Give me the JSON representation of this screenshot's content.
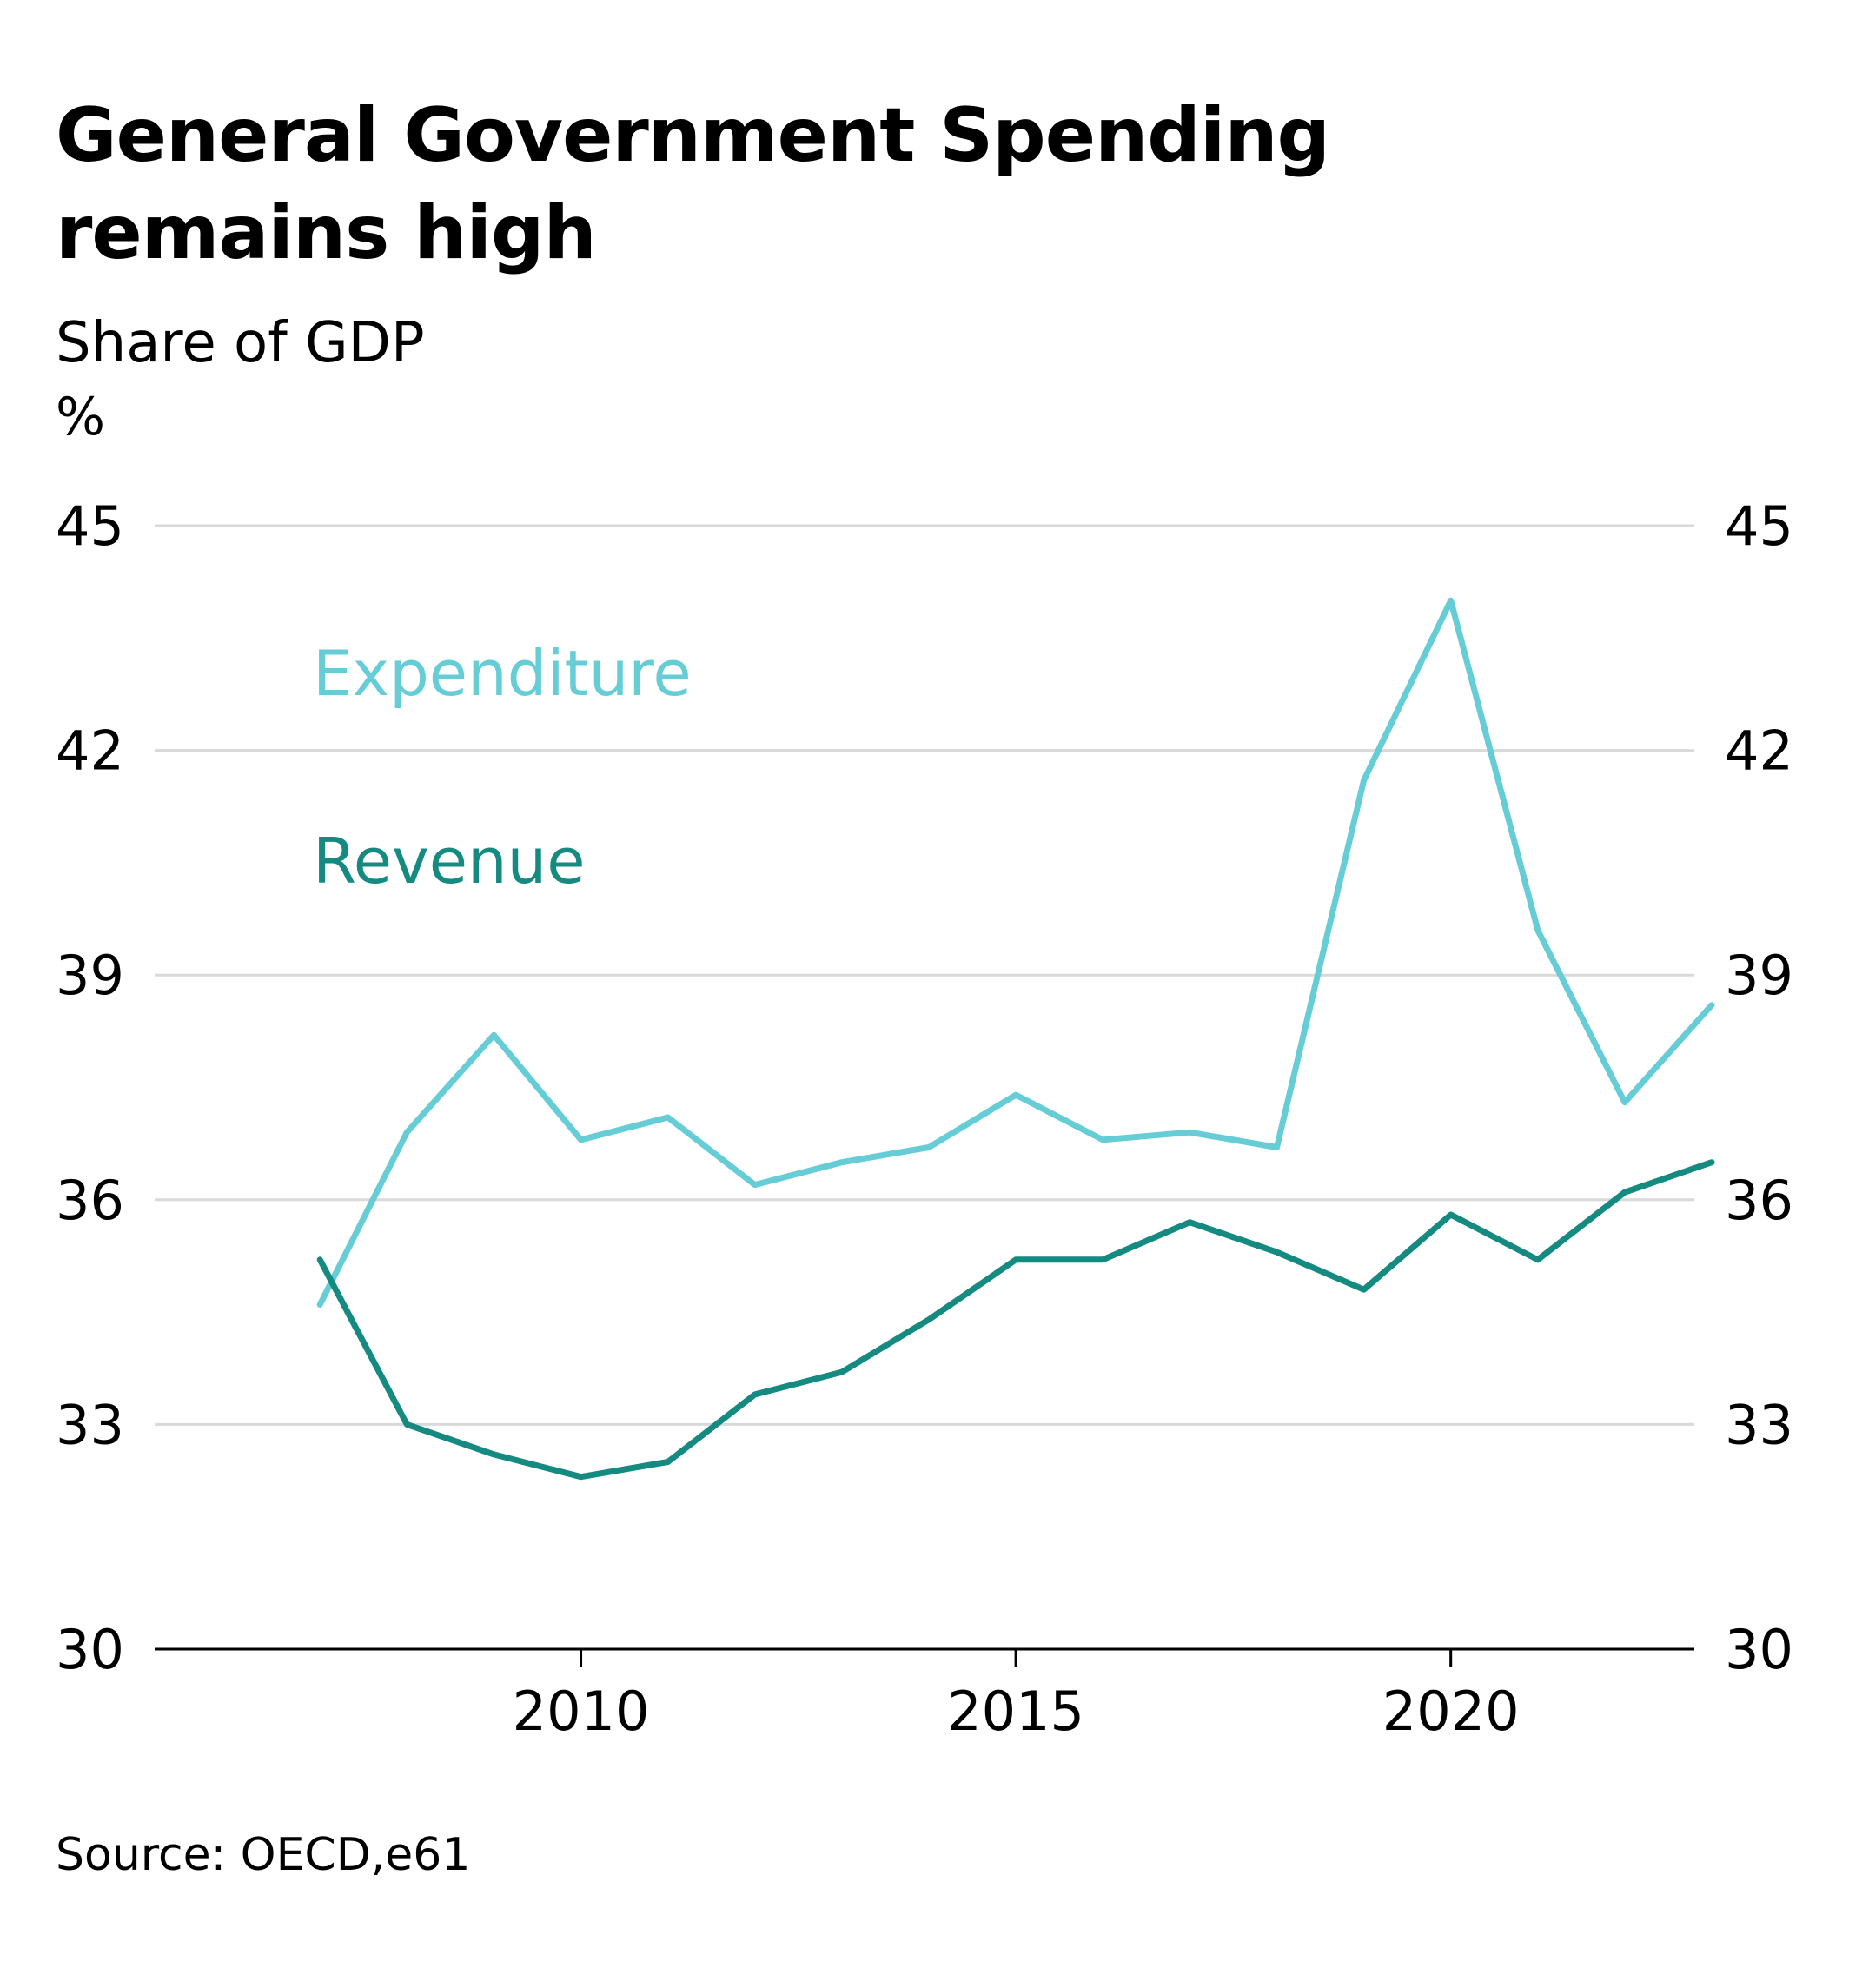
{
  "title": "General Government Spending remains high",
  "subtitle": "Share of GDP",
  "unit": "%",
  "source": "Source: OECD,e61",
  "colors": {
    "expenditure": "#66CDD6",
    "revenue": "#158A80",
    "grid": "#D9D9D9",
    "axis": "#000000"
  },
  "chart_data": {
    "type": "line",
    "title": "General Government Spending remains high",
    "subtitle": "Share of GDP",
    "ylabel": "%",
    "xlabel": "",
    "ylim": [
      30,
      45
    ],
    "yticks": [
      30,
      33,
      36,
      39,
      42,
      45
    ],
    "xlim": [
      2005.1,
      2022.8
    ],
    "xticks": [
      2010,
      2015,
      2020
    ],
    "grid": true,
    "dual_axis_labels": true,
    "legend": "direct labels, upper-left",
    "x": [
      2007,
      2008,
      2009,
      2010,
      2011,
      2012,
      2013,
      2014,
      2015,
      2016,
      2017,
      2018,
      2019,
      2020,
      2021,
      2022,
      2023
    ],
    "series": [
      {
        "name": "Expenditure",
        "values": [
          34.6,
          36.9,
          38.2,
          36.8,
          37.1,
          36.2,
          36.5,
          36.7,
          37.4,
          36.8,
          36.9,
          36.7,
          41.6,
          44.0,
          39.6,
          37.3,
          38.6
        ]
      },
      {
        "name": "Revenue",
        "values": [
          35.2,
          33.0,
          32.6,
          32.3,
          32.5,
          33.4,
          33.7,
          34.4,
          35.2,
          35.2,
          35.7,
          35.3,
          34.8,
          35.8,
          35.2,
          36.1,
          36.5
        ]
      }
    ]
  }
}
